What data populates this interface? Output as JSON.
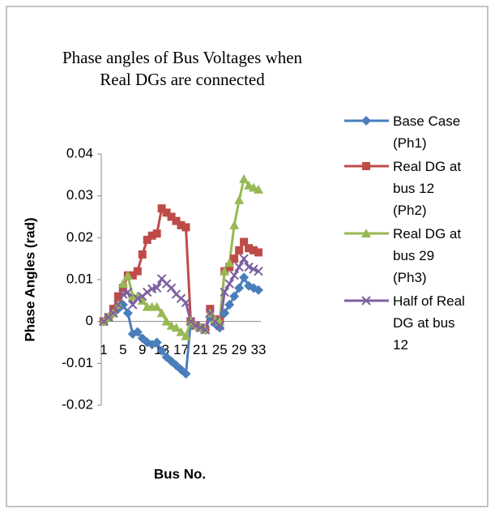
{
  "chart_data": {
    "type": "line",
    "title": "Phase angles of Bus Voltages when Real DGs are connected",
    "x_label": "Bus No.",
    "y_label": "Phase Angles (rad)",
    "categories": [
      "1",
      null,
      null,
      null,
      "5",
      null,
      null,
      null,
      "9",
      null,
      null,
      null,
      "13",
      null,
      null,
      null,
      "17",
      null,
      null,
      null,
      "21",
      null,
      null,
      null,
      "25",
      null,
      null,
      null,
      "29",
      null,
      null,
      null,
      "33"
    ],
    "ylim": [
      -0.02,
      0.04
    ],
    "yticks": [
      -0.02,
      -0.01,
      0,
      0.01,
      0.02,
      0.03,
      0.04
    ],
    "legend": "right",
    "series": [
      {
        "name": "Base Case (Ph1)",
        "color": "#4a7ebb",
        "marker": "diamond",
        "values": [
          0,
          0.001,
          0.002,
          0.003,
          0.004,
          0.002,
          -0.003,
          -0.0025,
          -0.004,
          -0.005,
          -0.0055,
          -0.005,
          -0.007,
          -0.0085,
          -0.0095,
          -0.0105,
          -0.0115,
          -0.0125,
          0,
          -0.001,
          -0.0015,
          -0.002,
          0.001,
          -0.0005,
          -0.0015,
          0.002,
          0.004,
          0.006,
          0.008,
          0.0105,
          0.0085,
          0.008,
          0.0075
        ]
      },
      {
        "name": "Real DG at bus 12 (Ph2)",
        "color": "#be4b48",
        "marker": "square",
        "values": [
          0,
          0.001,
          0.003,
          0.006,
          0.008,
          0.011,
          0.011,
          0.012,
          0.016,
          0.0195,
          0.0205,
          0.021,
          0.027,
          0.026,
          0.025,
          0.024,
          0.023,
          0.0225,
          0,
          -0.001,
          -0.0015,
          -0.002,
          0.003,
          0.0005,
          0,
          0.012,
          0.013,
          0.015,
          0.017,
          0.019,
          0.0175,
          0.017,
          0.0165
        ]
      },
      {
        "name": "Real DG at bus 29 (Ph3)",
        "color": "#98b954",
        "marker": "triangle",
        "values": [
          0,
          0.001,
          0.002,
          0.004,
          0.009,
          0.011,
          0.006,
          0.006,
          0.005,
          0.0035,
          0.0035,
          0.0035,
          0.002,
          0,
          -0.001,
          -0.0015,
          -0.0025,
          -0.0035,
          0,
          -0.001,
          -0.0015,
          -0.002,
          0.002,
          0.0005,
          0,
          0.012,
          0.014,
          0.023,
          0.029,
          0.034,
          0.0325,
          0.032,
          0.0315
        ]
      },
      {
        "name": "Half of Real DG at bus 12",
        "color": "#7d60a0",
        "marker": "x",
        "values": [
          0,
          0.001,
          0.002,
          0.004,
          0.0065,
          0.007,
          0.004,
          0.0055,
          0.006,
          0.007,
          0.0078,
          0.008,
          0.0102,
          0.009,
          0.008,
          0.0065,
          0.0055,
          0.0045,
          0,
          -0.001,
          -0.0015,
          -0.002,
          0.002,
          0,
          -0.001,
          0.007,
          0.009,
          0.011,
          0.013,
          0.015,
          0.013,
          0.0125,
          0.012
        ]
      }
    ]
  }
}
